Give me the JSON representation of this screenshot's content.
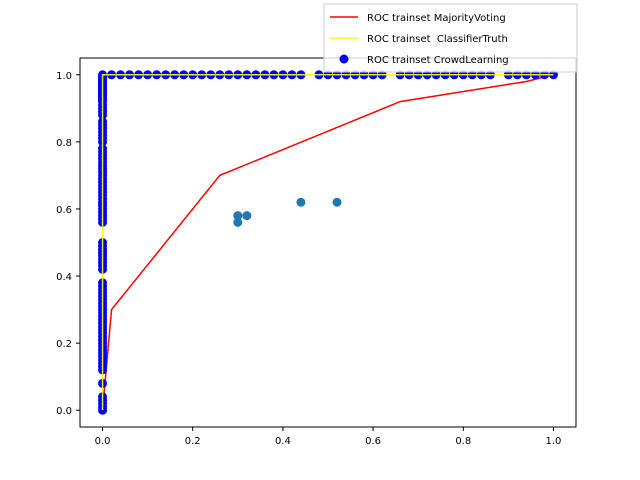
{
  "chart_data": {
    "type": "scatter",
    "title": "",
    "xlabel": "",
    "ylabel": "",
    "xlim": [
      -0.05,
      1.05
    ],
    "ylim": [
      -0.05,
      1.05
    ],
    "grid": false,
    "legend_placement": "top-right",
    "xticks": [
      0.0,
      0.2,
      0.4,
      0.6,
      0.8,
      1.0
    ],
    "xtick_labels": [
      "0.0",
      "0.2",
      "0.4",
      "0.6",
      "0.8",
      "1.0"
    ],
    "yticks": [
      0.0,
      0.2,
      0.4,
      0.6,
      0.8,
      1.0
    ],
    "ytick_labels": [
      "0.0",
      "0.2",
      "0.4",
      "0.6",
      "0.8",
      "1.0"
    ],
    "series": [
      {
        "name": "ROC trainset MajorityVoting",
        "kind": "line",
        "color": "#ff0000",
        "x": [
          0.0,
          0.02,
          0.26,
          0.66,
          0.94,
          1.0
        ],
        "y": [
          0.0,
          0.3,
          0.7,
          0.92,
          0.98,
          1.0
        ]
      },
      {
        "name": "ROC trainset  ClassifierTruth",
        "kind": "line",
        "color": "#ffff00",
        "x": [
          0.0,
          0.0,
          1.0
        ],
        "y": [
          0.0,
          1.0,
          1.0
        ]
      },
      {
        "name": "ROC trainset CrowdLearning",
        "kind": "scatter",
        "color": "#0000ff",
        "x": [
          0,
          0,
          0,
          0,
          0,
          0,
          0,
          0,
          0,
          0,
          0,
          0,
          0,
          0,
          0,
          0,
          0,
          0,
          0,
          0,
          0,
          0,
          0,
          0,
          0,
          0,
          0,
          0,
          0,
          0,
          0,
          0,
          0,
          0,
          0,
          0,
          0,
          0,
          0,
          0,
          0,
          0,
          0,
          0,
          0,
          0,
          0,
          0,
          0,
          0,
          0,
          0,
          0,
          0,
          0,
          0,
          0,
          0,
          0,
          0,
          0,
          0,
          0,
          0,
          0,
          0,
          0,
          0,
          0,
          0,
          0,
          0,
          0,
          0,
          0,
          0,
          0,
          0,
          0,
          0,
          0,
          0,
          0,
          0,
          0,
          0,
          0,
          0,
          0,
          0,
          0,
          0,
          0,
          0,
          0,
          0,
          0,
          0,
          0,
          0,
          0.02,
          0.04,
          0.06,
          0.08,
          0.1,
          0.12,
          0.14,
          0.16,
          0.18,
          0.2,
          0.22,
          0.24,
          0.26,
          0.28,
          0.3,
          0.32,
          0.34,
          0.36,
          0.38,
          0.4,
          0.42,
          0.44,
          0.48,
          0.5,
          0.52,
          0.54,
          0.56,
          0.58,
          0.6,
          0.62,
          0.66,
          0.68,
          0.7,
          0.72,
          0.74,
          0.76,
          0.78,
          0.8,
          0.82,
          0.84,
          0.86,
          0.9,
          0.92,
          0.94,
          0.96,
          0.98,
          1.0
        ],
        "y": [
          0,
          0.01,
          0.02,
          0.03,
          0.04,
          0.08,
          0.12,
          0.13,
          0.14,
          0.15,
          0.16,
          0.17,
          0.18,
          0.19,
          0.2,
          0.21,
          0.22,
          0.23,
          0.24,
          0.25,
          0.26,
          0.27,
          0.28,
          0.29,
          0.3,
          0.31,
          0.32,
          0.33,
          0.34,
          0.35,
          0.36,
          0.37,
          0.38,
          0.42,
          0.43,
          0.44,
          0.45,
          0.46,
          0.47,
          0.48,
          0.49,
          0.5,
          0.56,
          0.57,
          0.58,
          0.59,
          0.6,
          0.61,
          0.62,
          0.63,
          0.64,
          0.65,
          0.66,
          0.67,
          0.68,
          0.69,
          0.7,
          0.71,
          0.72,
          0.73,
          0.74,
          0.75,
          0.76,
          0.77,
          0.78,
          0.8,
          0.81,
          0.82,
          0.83,
          0.84,
          0.85,
          0.86,
          0.88,
          0.89,
          0.9,
          0.91,
          0.92,
          0.93,
          0.94,
          0.95,
          0.96,
          0.97,
          0.98,
          0.99,
          1.0,
          0.995,
          0.99,
          0.985,
          0.98,
          0.975,
          0.97,
          0.965,
          0.96,
          0.955,
          0.95,
          0.945,
          0.94,
          0.935,
          0.93,
          0.925,
          1,
          1,
          1,
          1,
          1,
          1,
          1,
          1,
          1,
          1,
          1,
          1,
          1,
          1,
          1,
          1,
          1,
          1,
          1,
          1,
          1,
          1,
          1,
          1,
          1,
          1,
          1,
          1,
          1,
          1,
          1,
          1,
          1,
          1,
          1,
          1,
          1,
          1,
          1,
          1,
          1,
          1,
          1,
          1,
          1,
          1,
          1
        ]
      },
      {
        "name": "",
        "kind": "scatter",
        "color": "#1f77b4",
        "x": [
          0.3,
          0.3,
          0.32,
          0.44,
          0.52
        ],
        "y": [
          0.56,
          0.58,
          0.58,
          0.62,
          0.62
        ]
      }
    ]
  }
}
